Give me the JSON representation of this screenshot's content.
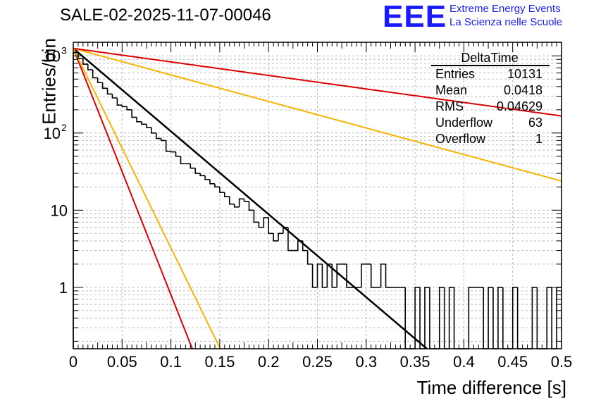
{
  "header": {
    "title": "SALE-02-2025-11-07-00046",
    "logo_letters": "EEE",
    "logo_line1": "Extreme Energy Events",
    "logo_line2": "La Scienza nelle Scuole"
  },
  "stats_box": {
    "name": "DeltaTime",
    "rows": [
      {
        "label": "Entries",
        "value": "10131"
      },
      {
        "label": "Mean",
        "value": "0.0418"
      },
      {
        "label": "RMS",
        "value": "0.04629"
      },
      {
        "label": "Underflow",
        "value": "63"
      },
      {
        "label": "Overflow",
        "value": "1"
      }
    ]
  },
  "chart_data": {
    "type": "histogram",
    "title": "SALE-02-2025-11-07-00046",
    "xlabel": "Time difference [s]",
    "ylabel": "Entries/bin",
    "xlim": [
      0,
      0.5
    ],
    "ylim": [
      0.16,
      1500
    ],
    "yscale": "log",
    "grid": true,
    "x_ticks": [
      "0",
      "0.05",
      "0.1",
      "0.15",
      "0.2",
      "0.25",
      "0.3",
      "0.35",
      "0.4",
      "0.45",
      "0.5"
    ],
    "y_ticks": [
      {
        "value": 1,
        "label": "1"
      },
      {
        "value": 10,
        "label": "10"
      },
      {
        "value": 100,
        "label": "10",
        "exp": "2"
      },
      {
        "value": 1000,
        "label": "10",
        "exp": "3"
      }
    ],
    "bin_width": 0.005,
    "histogram": {
      "name": "DeltaTime",
      "color": "#000000",
      "counts": [
        1100,
        930,
        780,
        660,
        520,
        450,
        380,
        320,
        285,
        230,
        220,
        200,
        160,
        140,
        130,
        118,
        100,
        85,
        80,
        58,
        57,
        50,
        40,
        40,
        35,
        30,
        28,
        25,
        22,
        20,
        17,
        15,
        12,
        11,
        14,
        13,
        10,
        7,
        6,
        8,
        5,
        4,
        5,
        6,
        3,
        3,
        4,
        3,
        2,
        1,
        2,
        1,
        2,
        1,
        2,
        2,
        1,
        1,
        1,
        2,
        2,
        1,
        1,
        2,
        1,
        1,
        1,
        1,
        0.1,
        0.1,
        1,
        0.1,
        1,
        0.1,
        0.1,
        1,
        0.1,
        1,
        0.1,
        0.1,
        0.1,
        1,
        1,
        1,
        0.1,
        1,
        0.1,
        1,
        0.1,
        0.1,
        1,
        0.1,
        0.1,
        0.1,
        1,
        0.1,
        0.1,
        1,
        0.1,
        1
      ]
    },
    "series": [
      {
        "name": "fit",
        "color": "#000000",
        "A": 1250,
        "tau": 0.0404
      },
      {
        "name": "rate-high-red",
        "color": "#dd0000",
        "A": 1250,
        "tau": 0.0136
      },
      {
        "name": "rate-high-orange",
        "color": "#f5b400",
        "A": 1250,
        "tau": 0.0168
      },
      {
        "name": "rate-low-orange",
        "color": "#f5b400",
        "A": 1250,
        "tau": 0.1263
      },
      {
        "name": "rate-low-red",
        "color": "#dd0000",
        "A": 1250,
        "tau": 0.2479
      }
    ]
  }
}
